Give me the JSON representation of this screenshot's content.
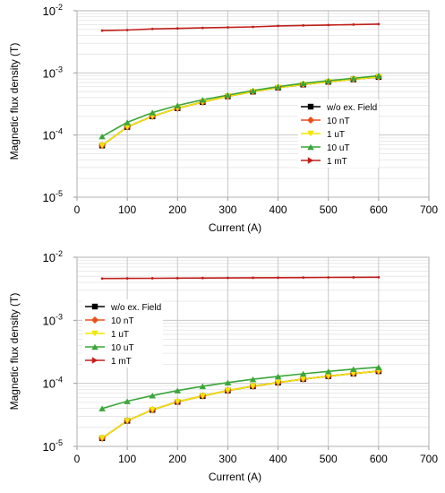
{
  "chart_data": [
    {
      "type": "line",
      "xlabel": "Current (A)",
      "ylabel": "Magnetic flux density (T)",
      "xlim": [
        0,
        700
      ],
      "ylim": [
        1e-05,
        0.01
      ],
      "yscale": "log",
      "grid": true,
      "legend_position": "lower-right",
      "x_ticks": [
        "0",
        "100",
        "200",
        "300",
        "400",
        "500",
        "600",
        "700"
      ],
      "y_ticks": [
        {
          "base": "10",
          "exp": "-5"
        },
        {
          "base": "10",
          "exp": "-4"
        },
        {
          "base": "10",
          "exp": "-3"
        },
        {
          "base": "10",
          "exp": "-2"
        }
      ],
      "x": [
        50,
        100,
        150,
        200,
        250,
        300,
        350,
        400,
        450,
        500,
        550,
        600
      ],
      "series": [
        {
          "name": "w/o ex. Field",
          "color": "#000000",
          "marker": "square",
          "values": [
            6.8e-05,
            0.000135,
            0.0002,
            0.00027,
            0.00034,
            0.00042,
            0.0005,
            0.00058,
            0.00065,
            0.00072,
            0.00079,
            0.00086
          ]
        },
        {
          "name": "10 nT",
          "color": "#e8501e",
          "marker": "diamond",
          "values": [
            6.8e-05,
            0.000135,
            0.0002,
            0.00027,
            0.00034,
            0.00042,
            0.0005,
            0.00058,
            0.00065,
            0.00072,
            0.00079,
            0.00086
          ]
        },
        {
          "name": "1 uT",
          "color": "#f2e600",
          "marker": "triangle-down",
          "values": [
            6.8e-05,
            0.000135,
            0.0002,
            0.00027,
            0.00034,
            0.00042,
            0.0005,
            0.00058,
            0.00065,
            0.00072,
            0.00079,
            0.00086
          ]
        },
        {
          "name": "10 uT",
          "color": "#3aa63a",
          "marker": "triangle-up",
          "values": [
            9.5e-05,
            0.00016,
            0.00023,
            0.0003,
            0.00037,
            0.00044,
            0.00052,
            0.0006,
            0.00068,
            0.00075,
            0.00082,
            0.0009
          ]
        },
        {
          "name": "1 mT",
          "color": "#c0201a",
          "marker": "triangle-right",
          "values": [
            0.0048,
            0.0049,
            0.0051,
            0.0052,
            0.0053,
            0.0054,
            0.0055,
            0.0057,
            0.0058,
            0.0059,
            0.006,
            0.0061
          ]
        }
      ]
    },
    {
      "type": "line",
      "xlabel": "Current (A)",
      "ylabel": "Magnetic flux density (T)",
      "xlim": [
        0,
        700
      ],
      "ylim": [
        1e-05,
        0.01
      ],
      "yscale": "log",
      "grid": true,
      "legend_position": "center-left",
      "x_ticks": [
        "0",
        "100",
        "200",
        "300",
        "400",
        "500",
        "600",
        "700"
      ],
      "y_ticks": [
        {
          "base": "10",
          "exp": "-5"
        },
        {
          "base": "10",
          "exp": "-4"
        },
        {
          "base": "10",
          "exp": "-3"
        },
        {
          "base": "10",
          "exp": "-2"
        }
      ],
      "x": [
        50,
        100,
        150,
        200,
        250,
        300,
        350,
        400,
        450,
        500,
        550,
        600
      ],
      "series": [
        {
          "name": "w/o ex. Field",
          "color": "#000000",
          "marker": "square",
          "values": [
            1.35e-05,
            2.55e-05,
            3.8e-05,
            5.1e-05,
            6.3e-05,
            7.7e-05,
            9e-05,
            0.000103,
            0.000117,
            0.00013,
            0.000143,
            0.000156
          ]
        },
        {
          "name": "10 nT",
          "color": "#e8501e",
          "marker": "diamond",
          "values": [
            1.35e-05,
            2.55e-05,
            3.8e-05,
            5.1e-05,
            6.3e-05,
            7.7e-05,
            9e-05,
            0.000103,
            0.000117,
            0.00013,
            0.000143,
            0.000156
          ]
        },
        {
          "name": "1 uT",
          "color": "#f2e600",
          "marker": "triangle-down",
          "values": [
            1.35e-05,
            2.55e-05,
            3.8e-05,
            5.1e-05,
            6.3e-05,
            7.7e-05,
            9e-05,
            0.000103,
            0.000117,
            0.00013,
            0.000143,
            0.000156
          ]
        },
        {
          "name": "10 uT",
          "color": "#3aa63a",
          "marker": "triangle-up",
          "values": [
            4e-05,
            5.2e-05,
            6.4e-05,
            7.7e-05,
            9e-05,
            0.000103,
            0.000116,
            0.000129,
            0.000142,
            0.000155,
            0.000168,
            0.00018
          ]
        },
        {
          "name": "1 mT",
          "color": "#c0201a",
          "marker": "triangle-right",
          "values": [
            0.0046,
            0.00462,
            0.00464,
            0.00466,
            0.00468,
            0.0047,
            0.00472,
            0.00474,
            0.00476,
            0.00478,
            0.0048,
            0.00482
          ]
        }
      ]
    }
  ]
}
